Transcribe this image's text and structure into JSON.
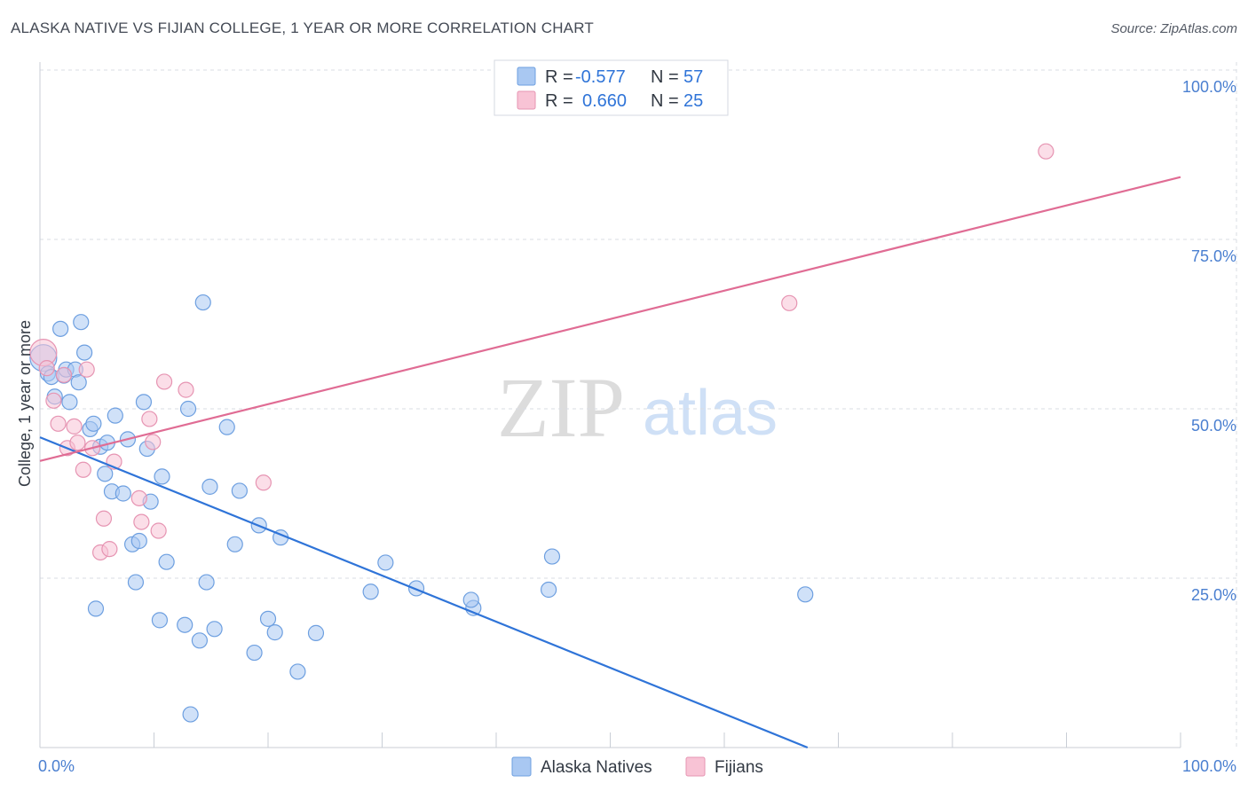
{
  "title": "ALASKA NATIVE VS FIJIAN COLLEGE, 1 YEAR OR MORE CORRELATION CHART",
  "source": "Source: ZipAtlas.com",
  "watermark": {
    "zip": "ZIP",
    "atlas": "atlas"
  },
  "colors": {
    "blue_fill": "#a9c8f2",
    "blue_stroke": "#6d9fe0",
    "blue_line": "#2f74d8",
    "pink_fill": "#f8c3d5",
    "pink_stroke": "#e694b2",
    "pink_line": "#e06c94",
    "tick_text": "#4a7fd0",
    "grid": "#d8dce3"
  },
  "legend": {
    "rows": [
      {
        "r_label": "R =",
        "r_value": "-0.577",
        "n_label": "N =",
        "n_value": "57"
      },
      {
        "r_label": "R =",
        "r_value": "0.660",
        "n_label": "N =",
        "n_value": "25"
      }
    ]
  },
  "chart_data": {
    "type": "scatter",
    "title": "ALASKA NATIVE VS FIJIAN COLLEGE, 1 YEAR OR MORE CORRELATION CHART",
    "xlabel": "",
    "ylabel": "College, 1 year or more",
    "xlim": [
      0,
      100
    ],
    "ylim": [
      0,
      100
    ],
    "x_tick_labels": [
      "0.0%",
      "100.0%"
    ],
    "y_ticks": [
      {
        "value": 25,
        "label": "25.0%"
      },
      {
        "value": 50,
        "label": "50.0%"
      },
      {
        "value": 75,
        "label": "75.0%"
      },
      {
        "value": 100,
        "label": "100.0%"
      }
    ],
    "grid": true,
    "legend_position": "bottom",
    "series": [
      {
        "name": "Alaska Natives",
        "color": "#a9c8f2",
        "trend": {
          "x0": 0,
          "y0": 45.8,
          "x1": 67.3,
          "y1": 0,
          "color": "#2f74d8"
        },
        "points": [
          [
            0.3,
            57.5
          ],
          [
            0.7,
            55.2
          ],
          [
            1.0,
            54.7
          ],
          [
            1.3,
            51.8
          ],
          [
            1.8,
            61.8
          ],
          [
            2.1,
            54.9
          ],
          [
            2.3,
            55.8
          ],
          [
            2.6,
            51.0
          ],
          [
            3.1,
            55.8
          ],
          [
            3.4,
            53.9
          ],
          [
            3.6,
            62.8
          ],
          [
            3.9,
            58.3
          ],
          [
            4.4,
            47.0
          ],
          [
            4.7,
            47.8
          ],
          [
            4.9,
            20.5
          ],
          [
            5.3,
            44.4
          ],
          [
            5.7,
            40.4
          ],
          [
            5.9,
            45.0
          ],
          [
            6.3,
            37.8
          ],
          [
            6.6,
            49.0
          ],
          [
            7.3,
            37.5
          ],
          [
            7.7,
            45.5
          ],
          [
            8.1,
            30.0
          ],
          [
            8.4,
            24.4
          ],
          [
            8.7,
            30.5
          ],
          [
            9.1,
            51.0
          ],
          [
            9.4,
            44.1
          ],
          [
            9.7,
            36.3
          ],
          [
            10.7,
            40.0
          ],
          [
            10.5,
            18.8
          ],
          [
            11.1,
            27.4
          ],
          [
            12.7,
            18.1
          ],
          [
            13.0,
            50.0
          ],
          [
            13.2,
            4.9
          ],
          [
            14.0,
            15.8
          ],
          [
            14.3,
            65.7
          ],
          [
            14.6,
            24.4
          ],
          [
            14.9,
            38.5
          ],
          [
            15.3,
            17.5
          ],
          [
            16.4,
            47.3
          ],
          [
            17.1,
            30.0
          ],
          [
            17.5,
            37.9
          ],
          [
            18.8,
            14.0
          ],
          [
            19.2,
            32.8
          ],
          [
            20.0,
            19.0
          ],
          [
            20.6,
            17.0
          ],
          [
            21.1,
            31.0
          ],
          [
            22.6,
            11.2
          ],
          [
            24.2,
            16.9
          ],
          [
            29.0,
            23.0
          ],
          [
            30.3,
            27.3
          ],
          [
            33.0,
            23.5
          ],
          [
            38.0,
            20.6
          ],
          [
            37.8,
            21.8
          ],
          [
            44.6,
            23.3
          ],
          [
            44.9,
            28.2
          ],
          [
            67.1,
            22.6
          ]
        ]
      },
      {
        "name": "Fijians",
        "color": "#f8c3d5",
        "trend": {
          "x0": 0,
          "y0": 42.3,
          "x1": 100,
          "y1": 84.2,
          "color": "#e06c94"
        },
        "points": [
          [
            0.3,
            58.3
          ],
          [
            0.6,
            56.0
          ],
          [
            1.2,
            51.2
          ],
          [
            1.6,
            47.8
          ],
          [
            2.1,
            55.0
          ],
          [
            2.4,
            44.2
          ],
          [
            3.0,
            47.4
          ],
          [
            3.3,
            45.0
          ],
          [
            3.8,
            41.0
          ],
          [
            4.1,
            55.8
          ],
          [
            4.6,
            44.2
          ],
          [
            5.3,
            28.8
          ],
          [
            5.6,
            33.8
          ],
          [
            6.1,
            29.3
          ],
          [
            6.5,
            42.2
          ],
          [
            8.7,
            36.8
          ],
          [
            8.9,
            33.3
          ],
          [
            9.6,
            48.5
          ],
          [
            9.9,
            45.1
          ],
          [
            10.4,
            32.0
          ],
          [
            10.9,
            54.0
          ],
          [
            12.8,
            52.8
          ],
          [
            19.6,
            39.1
          ],
          [
            65.7,
            65.6
          ],
          [
            88.2,
            88.0
          ]
        ]
      }
    ]
  },
  "bottom_legend": [
    {
      "label": "Alaska Natives"
    },
    {
      "label": "Fijians"
    }
  ]
}
